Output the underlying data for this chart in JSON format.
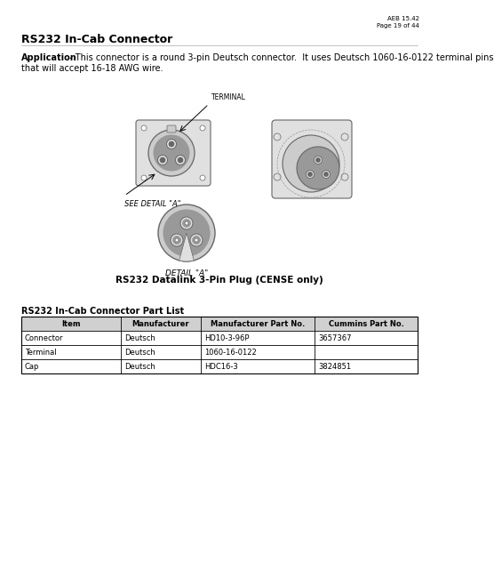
{
  "page_header_right": "AEB 15.42\nPage 19 of 44",
  "section_title": "RS232 In-Cab Connector",
  "app_label": "Application",
  "app_text_line1": " - This connector is a round 3-pin Deutsch connector.  It uses Deutsch 1060-16-0122 terminal pins",
  "app_text_line2": "that will accept 16-18 AWG wire.",
  "diagram_caption": "RS232 Datalink 3-Pin Plug (CENSE only)",
  "table_title": "RS232 In-Cab Connector Part List",
  "table_headers": [
    "Item",
    "Manufacturer",
    "Manufacturer Part No.",
    "Cummins Part No."
  ],
  "table_rows": [
    [
      "Connector",
      "Deutsch",
      "HD10-3-96P",
      "3657367"
    ],
    [
      "Terminal",
      "Deutsch",
      "1060-16-0122",
      ""
    ],
    [
      "Cap",
      "Deutsch",
      "HDC16-3",
      "3824851"
    ]
  ],
  "bg_color": "#ffffff",
  "text_color": "#000000",
  "border_color": "#000000",
  "img_gray_dark": "#666666",
  "img_gray_mid": "#999999",
  "img_gray_light": "#cccccc",
  "img_gray_lighter": "#e0e0e0"
}
